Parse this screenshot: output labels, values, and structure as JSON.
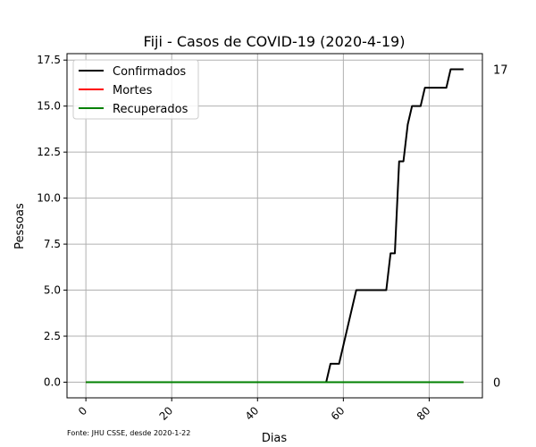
{
  "chart_data": {
    "type": "line",
    "title": "Fiji - Casos de COVID-19 (2020-4-19)",
    "xlabel": "Dias",
    "ylabel": "Pessoas",
    "source_note": "Fonte: JHU CSSE, desde 2020-1-22",
    "xlim": [
      -4.4,
      92.4
    ],
    "ylim": [
      -0.85,
      17.85
    ],
    "xticks": [
      0,
      20,
      40,
      60,
      80
    ],
    "xtick_labels": [
      "0",
      "20",
      "40",
      "60",
      "80"
    ],
    "yticks": [
      0.0,
      2.5,
      5.0,
      7.5,
      10.0,
      12.5,
      15.0,
      17.5
    ],
    "ytick_labels": [
      "0.0",
      "2.5",
      "5.0",
      "7.5",
      "10.0",
      "12.5",
      "15.0",
      "17.5"
    ],
    "grid": true,
    "legend_position": "top-left",
    "series": [
      {
        "name": "Confirmados",
        "color": "#000000",
        "points": [
          [
            0,
            0
          ],
          [
            56,
            0
          ],
          [
            57,
            1
          ],
          [
            59,
            1
          ],
          [
            63,
            5
          ],
          [
            70,
            5
          ],
          [
            71,
            7
          ],
          [
            72,
            7
          ],
          [
            73,
            12
          ],
          [
            74,
            12
          ],
          [
            75,
            14
          ],
          [
            76,
            15
          ],
          [
            78,
            15
          ],
          [
            79,
            16
          ],
          [
            84,
            16
          ],
          [
            85,
            17
          ],
          [
            88,
            17
          ]
        ]
      },
      {
        "name": "Mortes",
        "color": "#ff0000",
        "points": [
          [
            0,
            0
          ],
          [
            88,
            0
          ]
        ]
      },
      {
        "name": "Recuperados",
        "color": "#008000",
        "points": [
          [
            0,
            0
          ],
          [
            88,
            0
          ]
        ]
      }
    ],
    "end_labels": [
      {
        "text": "17",
        "value": 17
      },
      {
        "text": "0",
        "value": 0
      }
    ]
  }
}
